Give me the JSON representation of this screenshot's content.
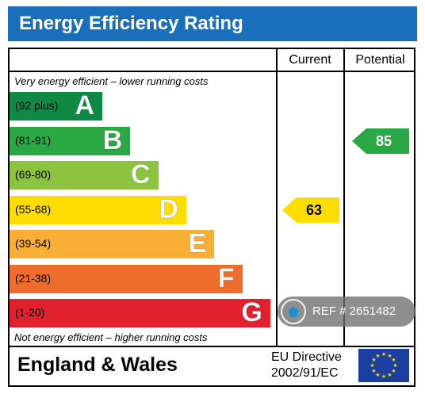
{
  "header": {
    "title": "Energy Efficiency Rating"
  },
  "columns": {
    "current": "Current",
    "potential": "Potential"
  },
  "captions": {
    "top": "Very energy efficient – lower running costs",
    "bottom": "Not energy efficient – higher running costs"
  },
  "footer": {
    "region": "England & Wales",
    "directive_line1": "EU Directive",
    "directive_line2": "2002/91/EC"
  },
  "badge": {
    "ref_text": "REF # 2651482"
  },
  "chart_data": {
    "type": "bar",
    "title": "Energy Efficiency Rating",
    "bands": [
      {
        "letter": "A",
        "range": "(92 plus)",
        "color": "#0f8a45"
      },
      {
        "letter": "B",
        "range": "(81-91)",
        "color": "#2aa844"
      },
      {
        "letter": "C",
        "range": "(69-80)",
        "color": "#8dc43f"
      },
      {
        "letter": "D",
        "range": "(55-68)",
        "color": "#ffdd00"
      },
      {
        "letter": "E",
        "range": "(39-54)",
        "color": "#f9ae36"
      },
      {
        "letter": "F",
        "range": "(21-38)",
        "color": "#ee6d2d"
      },
      {
        "letter": "G",
        "range": "(1-20)",
        "color": "#e3202d"
      }
    ],
    "current": {
      "value": 63,
      "band": "D",
      "color": "#ffdd00"
    },
    "potential": {
      "value": 85,
      "band": "B",
      "color": "#2aa844"
    }
  }
}
